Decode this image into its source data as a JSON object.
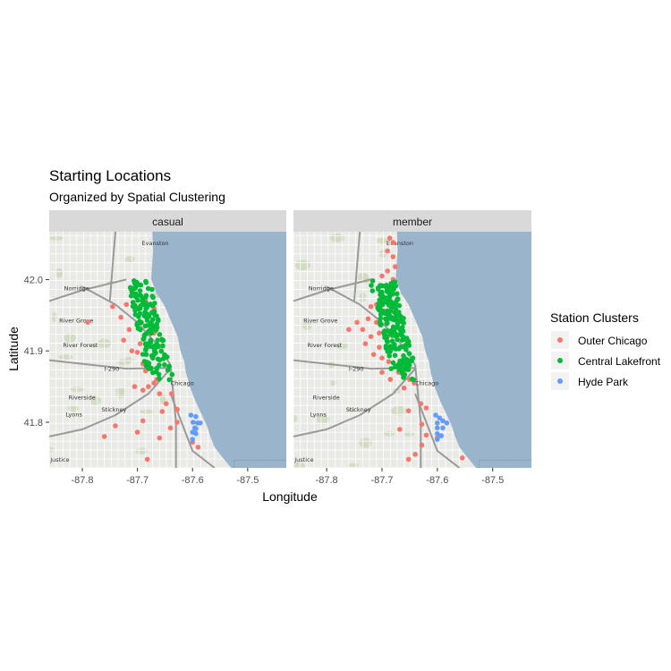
{
  "chart": {
    "title": "Starting Locations",
    "subtitle": "Organized by Spatial Clustering",
    "xlabel": "Longitude",
    "ylabel": "Latitude",
    "panels": [
      "casual",
      "member"
    ],
    "x_ticks": [
      "-87.8",
      "-87.7",
      "-87.6",
      "-87.5"
    ],
    "y_ticks": [
      "41.8",
      "41.9",
      "42.0"
    ]
  },
  "legend": {
    "title": "Station Clusters",
    "items": [
      {
        "label": "Outer Chicago",
        "color": "#F8766D"
      },
      {
        "label": "Central Lakefront",
        "color": "#00BA38"
      },
      {
        "label": "Hyde Park",
        "color": "#619CFF"
      }
    ]
  },
  "basemap": {
    "water_color": "#9ab4cc",
    "land_color": "#e9e9e5",
    "labels": [
      "Evanston",
      "Norridge",
      "River Grove",
      "River Forest",
      "I-290",
      "Chicago",
      "Riverside",
      "Stickney",
      "Lyons",
      "Justice"
    ]
  },
  "chart_data": {
    "type": "scatter",
    "x_axis": {
      "label": "Longitude",
      "ticks": [
        -87.8,
        -87.7,
        -87.6,
        -87.5
      ],
      "range": [
        -87.86,
        -87.43
      ]
    },
    "y_axis": {
      "label": "Latitude",
      "ticks": [
        41.8,
        41.9,
        42.0
      ],
      "range": [
        41.736,
        42.067
      ]
    },
    "facets": [
      "casual",
      "member"
    ],
    "series": [
      {
        "name": "Outer Chicago",
        "color": "#F8766D",
        "casual": [
          [
            -87.71,
            41.982
          ],
          [
            -87.685,
            41.97
          ],
          [
            -87.675,
            41.965
          ],
          [
            -87.67,
            41.96
          ],
          [
            -87.72,
            41.965
          ],
          [
            -87.745,
            41.962
          ],
          [
            -87.79,
            41.94
          ],
          [
            -87.73,
            41.947
          ],
          [
            -87.715,
            41.93
          ],
          [
            -87.725,
            41.915
          ],
          [
            -87.71,
            41.9
          ],
          [
            -87.7,
            41.898
          ],
          [
            -87.695,
            41.91
          ],
          [
            -87.67,
            41.925
          ],
          [
            -87.69,
            41.882
          ],
          [
            -87.685,
            41.872
          ],
          [
            -87.675,
            41.876
          ],
          [
            -87.665,
            41.86
          ],
          [
            -87.67,
            41.855
          ],
          [
            -87.68,
            41.85
          ],
          [
            -87.69,
            41.845
          ],
          [
            -87.705,
            41.85
          ],
          [
            -87.66,
            41.84
          ],
          [
            -87.648,
            41.826
          ],
          [
            -87.638,
            41.84
          ],
          [
            -87.628,
            41.818
          ],
          [
            -87.655,
            41.815
          ],
          [
            -87.69,
            41.802
          ],
          [
            -87.74,
            41.795
          ],
          [
            -87.64,
            41.792
          ],
          [
            -87.66,
            41.778
          ],
          [
            -87.7,
            41.786
          ],
          [
            -87.628,
            41.8
          ],
          [
            -87.76,
            41.78
          ],
          [
            -87.682,
            41.748
          ],
          [
            -87.6,
            41.772
          ],
          [
            -87.59,
            41.765
          ]
        ],
        "member": [
          [
            -87.686,
            42.058
          ],
          [
            -87.68,
            42.052
          ],
          [
            -87.69,
            42.04
          ],
          [
            -87.68,
            42.032
          ],
          [
            -87.676,
            42.018
          ],
          [
            -87.69,
            42.012
          ],
          [
            -87.7,
            42.005
          ],
          [
            -87.68,
            42.0
          ],
          [
            -87.7,
            41.97
          ],
          [
            -87.71,
            41.965
          ],
          [
            -87.72,
            41.962
          ],
          [
            -87.68,
            41.964
          ],
          [
            -87.695,
            41.955
          ],
          [
            -87.725,
            41.945
          ],
          [
            -87.745,
            41.94
          ],
          [
            -87.71,
            41.94
          ],
          [
            -87.735,
            41.93
          ],
          [
            -87.76,
            41.93
          ],
          [
            -87.705,
            41.925
          ],
          [
            -87.72,
            41.92
          ],
          [
            -87.69,
            41.92
          ],
          [
            -87.73,
            41.91
          ],
          [
            -87.705,
            41.905
          ],
          [
            -87.715,
            41.895
          ],
          [
            -87.7,
            41.89
          ],
          [
            -87.688,
            41.885
          ],
          [
            -87.7,
            41.87
          ],
          [
            -87.685,
            41.86
          ],
          [
            -87.665,
            41.88
          ],
          [
            -87.67,
            41.87
          ],
          [
            -87.66,
            41.866
          ],
          [
            -87.65,
            41.86
          ],
          [
            -87.642,
            41.855
          ],
          [
            -87.66,
            41.848
          ],
          [
            -87.63,
            41.826
          ],
          [
            -87.62,
            41.82
          ],
          [
            -87.652,
            41.816
          ],
          [
            -87.628,
            41.797
          ],
          [
            -87.668,
            41.79
          ],
          [
            -87.62,
            41.782
          ],
          [
            -87.6,
            41.778
          ],
          [
            -87.628,
            41.768
          ],
          [
            -87.64,
            41.755
          ],
          [
            -87.652,
            41.748
          ],
          [
            -87.555,
            41.75
          ]
        ]
      },
      {
        "name": "Central Lakefront",
        "color": "#00BA38",
        "casual": [],
        "member": []
      },
      {
        "name": "Hyde Park",
        "color": "#619CFF",
        "casual": [
          [
            -87.603,
            41.81
          ],
          [
            -87.594,
            41.808
          ],
          [
            -87.599,
            41.8
          ],
          [
            -87.591,
            41.799
          ],
          [
            -87.586,
            41.799
          ],
          [
            -87.596,
            41.792
          ],
          [
            -87.6,
            41.786
          ],
          [
            -87.594,
            41.784
          ],
          [
            -87.6,
            41.776
          ],
          [
            -87.594,
            41.791
          ]
        ],
        "member": [
          [
            -87.603,
            41.81
          ],
          [
            -87.596,
            41.806
          ],
          [
            -87.59,
            41.802
          ],
          [
            -87.6,
            41.799
          ],
          [
            -87.583,
            41.799
          ],
          [
            -87.6,
            41.792
          ],
          [
            -87.59,
            41.792
          ],
          [
            -87.6,
            41.784
          ],
          [
            -87.593,
            41.781
          ],
          [
            -87.6,
            41.776
          ]
        ]
      }
    ]
  }
}
